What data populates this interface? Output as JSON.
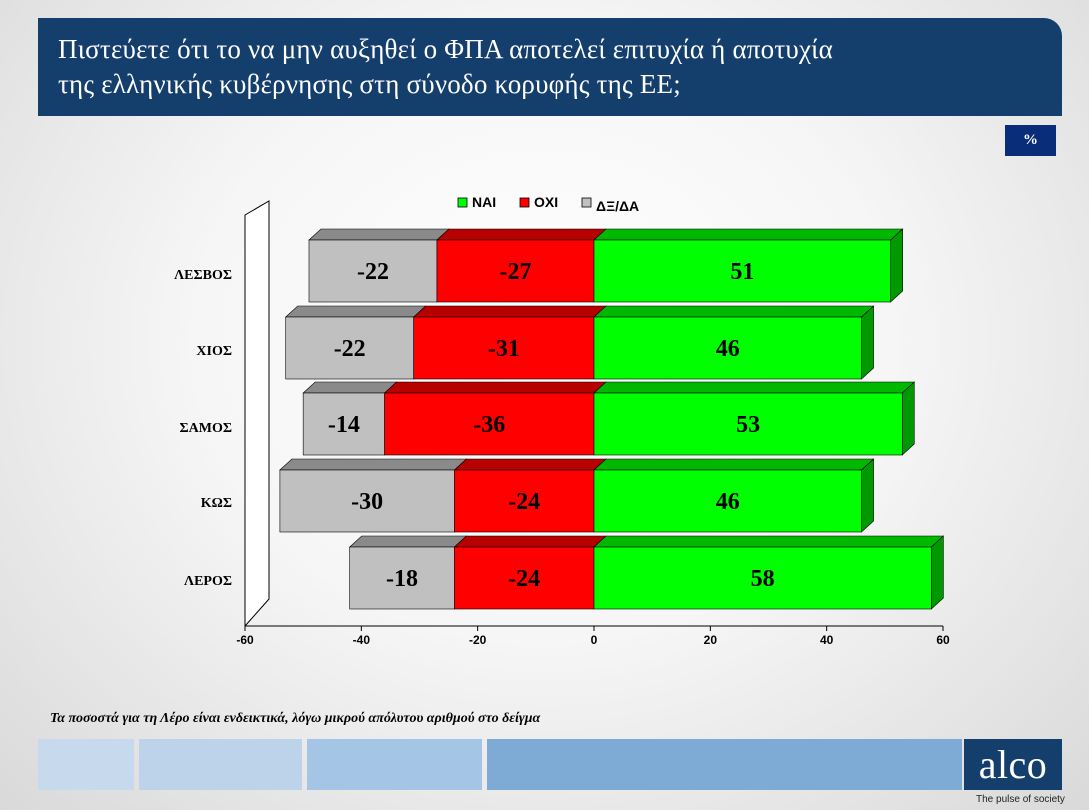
{
  "title": "Πιστεύετε ότι το να μην αυξηθεί ο ΦΠΑ αποτελεί επιτυχία ή αποτυχία\nτης ελληνικής κυβέρνησης στη σύνοδο κορυφής της ΕΕ;",
  "unit_badge": "%",
  "footnote": "Τα ποσοστά για τη Λέρο είναι ενδεικτικά, λόγω μικρού απόλυτου αριθμού στο δείγμα",
  "logo": {
    "text": "alco",
    "tagline": "The pulse of society"
  },
  "colors": {
    "title_bg": "#143e6c",
    "yes": "#00ff00",
    "no": "#ff0000",
    "dk": "#c0c0c0",
    "footer_blocks": [
      "#c7daed",
      "#bcd3ea",
      "#a5c5e6",
      "#7eaad6"
    ]
  },
  "chart_data": {
    "type": "bar",
    "orientation": "horizontal",
    "stacked": true,
    "diverging": true,
    "categories": [
      "ΛΕΣΒΟΣ",
      "ΧΙΟΣ",
      "ΣΑΜΟΣ",
      "ΚΩΣ",
      "ΛΕΡΟΣ"
    ],
    "series": [
      {
        "name": "ΝΑΙ",
        "color": "#00ff00",
        "values": [
          51,
          46,
          53,
          46,
          58
        ]
      },
      {
        "name": "ΟΧΙ",
        "color": "#ff0000",
        "values": [
          -27,
          -31,
          -36,
          -24,
          -24
        ]
      },
      {
        "name": "ΔΞ/ΔΑ",
        "color": "#c0c0c0",
        "values": [
          -22,
          -22,
          -14,
          -30,
          -18
        ]
      }
    ],
    "xlim": [
      -60,
      60
    ],
    "xticks": [
      -60,
      -40,
      -20,
      0,
      20,
      40,
      60
    ],
    "legend_position": "top",
    "grid": false
  }
}
